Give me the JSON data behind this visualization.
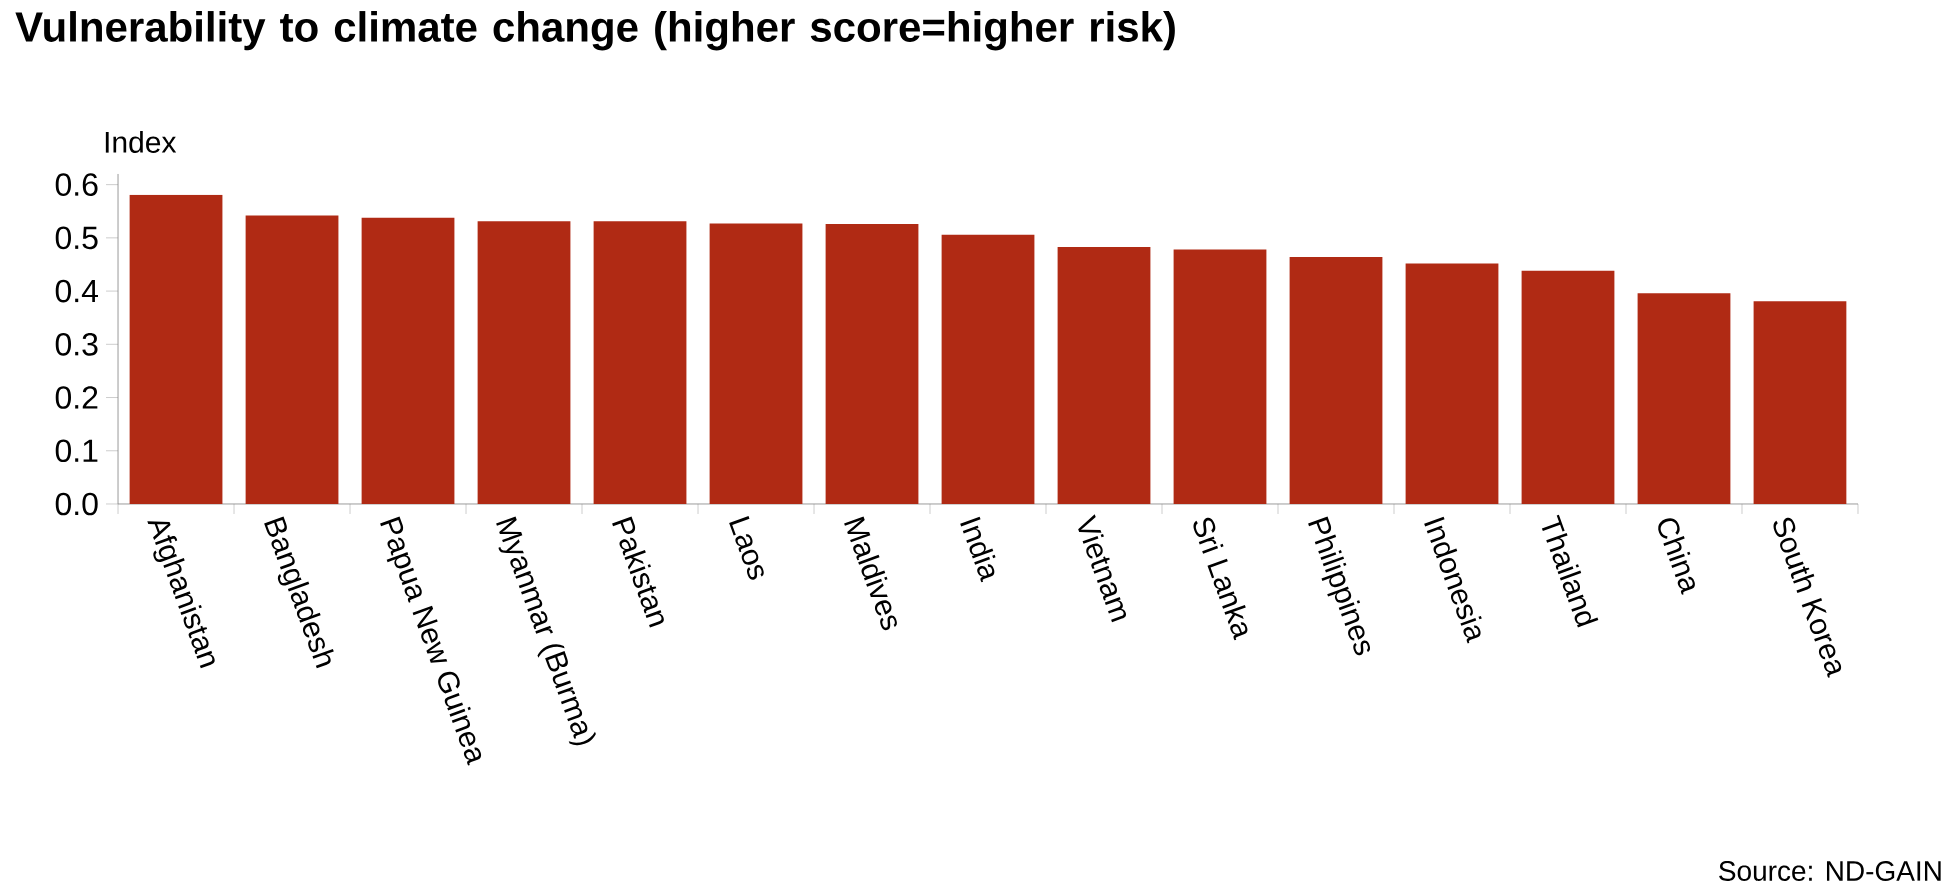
{
  "chart_data": {
    "type": "bar",
    "title": "Vulnerability to climate change (higher score=higher risk)",
    "ylabel": "Index",
    "categories": [
      "Afghanistan",
      "Bangladesh",
      "Papua New Guinea",
      "Myanmar (Burma)",
      "Pakistan",
      "Laos",
      "Maldives",
      "India",
      "Vietnam",
      "Sri Lanka",
      "Philippines",
      "Indonesia",
      "Thailand",
      "China",
      "South Korea"
    ],
    "values": [
      0.581,
      0.542,
      0.538,
      0.531,
      0.531,
      0.527,
      0.526,
      0.506,
      0.483,
      0.478,
      0.464,
      0.452,
      0.438,
      0.396,
      0.381
    ],
    "color": "#b02a14",
    "ylim": [
      0,
      0.62
    ],
    "yticks": [
      {
        "value": 0,
        "label": "0.0"
      },
      {
        "value": 0.1,
        "label": "0.1"
      },
      {
        "value": 0.2,
        "label": "0.2"
      },
      {
        "value": 0.3,
        "label": "0.3"
      },
      {
        "value": 0.4,
        "label": "0.4"
      },
      {
        "value": 0.5,
        "label": "0.5"
      },
      {
        "value": 0.6,
        "label": "0.6"
      }
    ],
    "grid": false,
    "annotations": [
      "Source: ND-GAIN"
    ]
  }
}
